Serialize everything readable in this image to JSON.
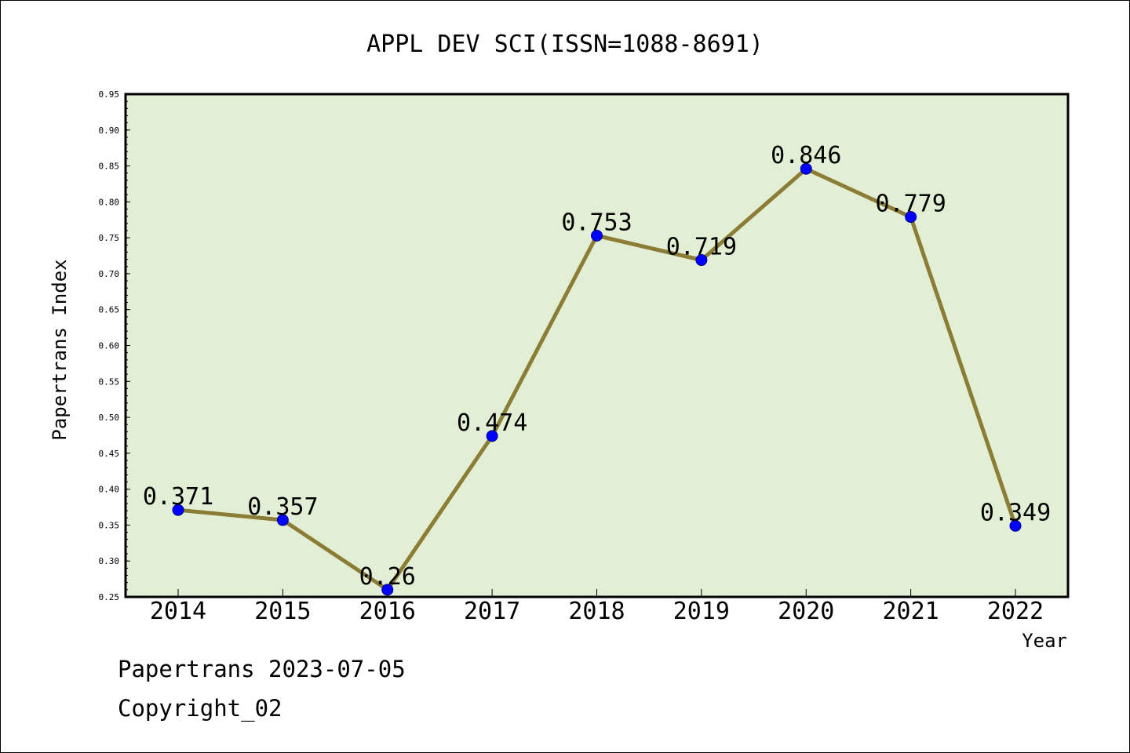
{
  "chart_data": {
    "type": "line",
    "title": "APPL DEV SCI(ISSN=1088-8691)",
    "xlabel": "Year",
    "ylabel": "Papertrans Index",
    "categories": [
      "2014",
      "2015",
      "2016",
      "2017",
      "2018",
      "2019",
      "2020",
      "2021",
      "2022"
    ],
    "series": [
      {
        "values": [
          0.371,
          0.357,
          0.26,
          0.474,
          0.753,
          0.719,
          0.846,
          0.779,
          0.349
        ],
        "labels": [
          "0.371",
          "0.357",
          "0.26",
          "0.474",
          "0.753",
          "0.719",
          "0.846",
          "0.779",
          "0.349"
        ]
      }
    ],
    "ylim": [
      0.25,
      0.95
    ],
    "yticks": [
      "0.25",
      "0.30",
      "0.35",
      "0.40",
      "0.45",
      "0.50",
      "0.55",
      "0.60",
      "0.65",
      "0.70",
      "0.75",
      "0.80",
      "0.85",
      "0.90",
      "0.95"
    ],
    "grid": false,
    "legend": "none",
    "colors": {
      "plot_bg": "#e2efd5",
      "line": "#8b7d35",
      "marker": "#0000ff"
    }
  },
  "footer": {
    "line1": "Papertrans 2023-07-05",
    "line2": "Copyright_02"
  }
}
